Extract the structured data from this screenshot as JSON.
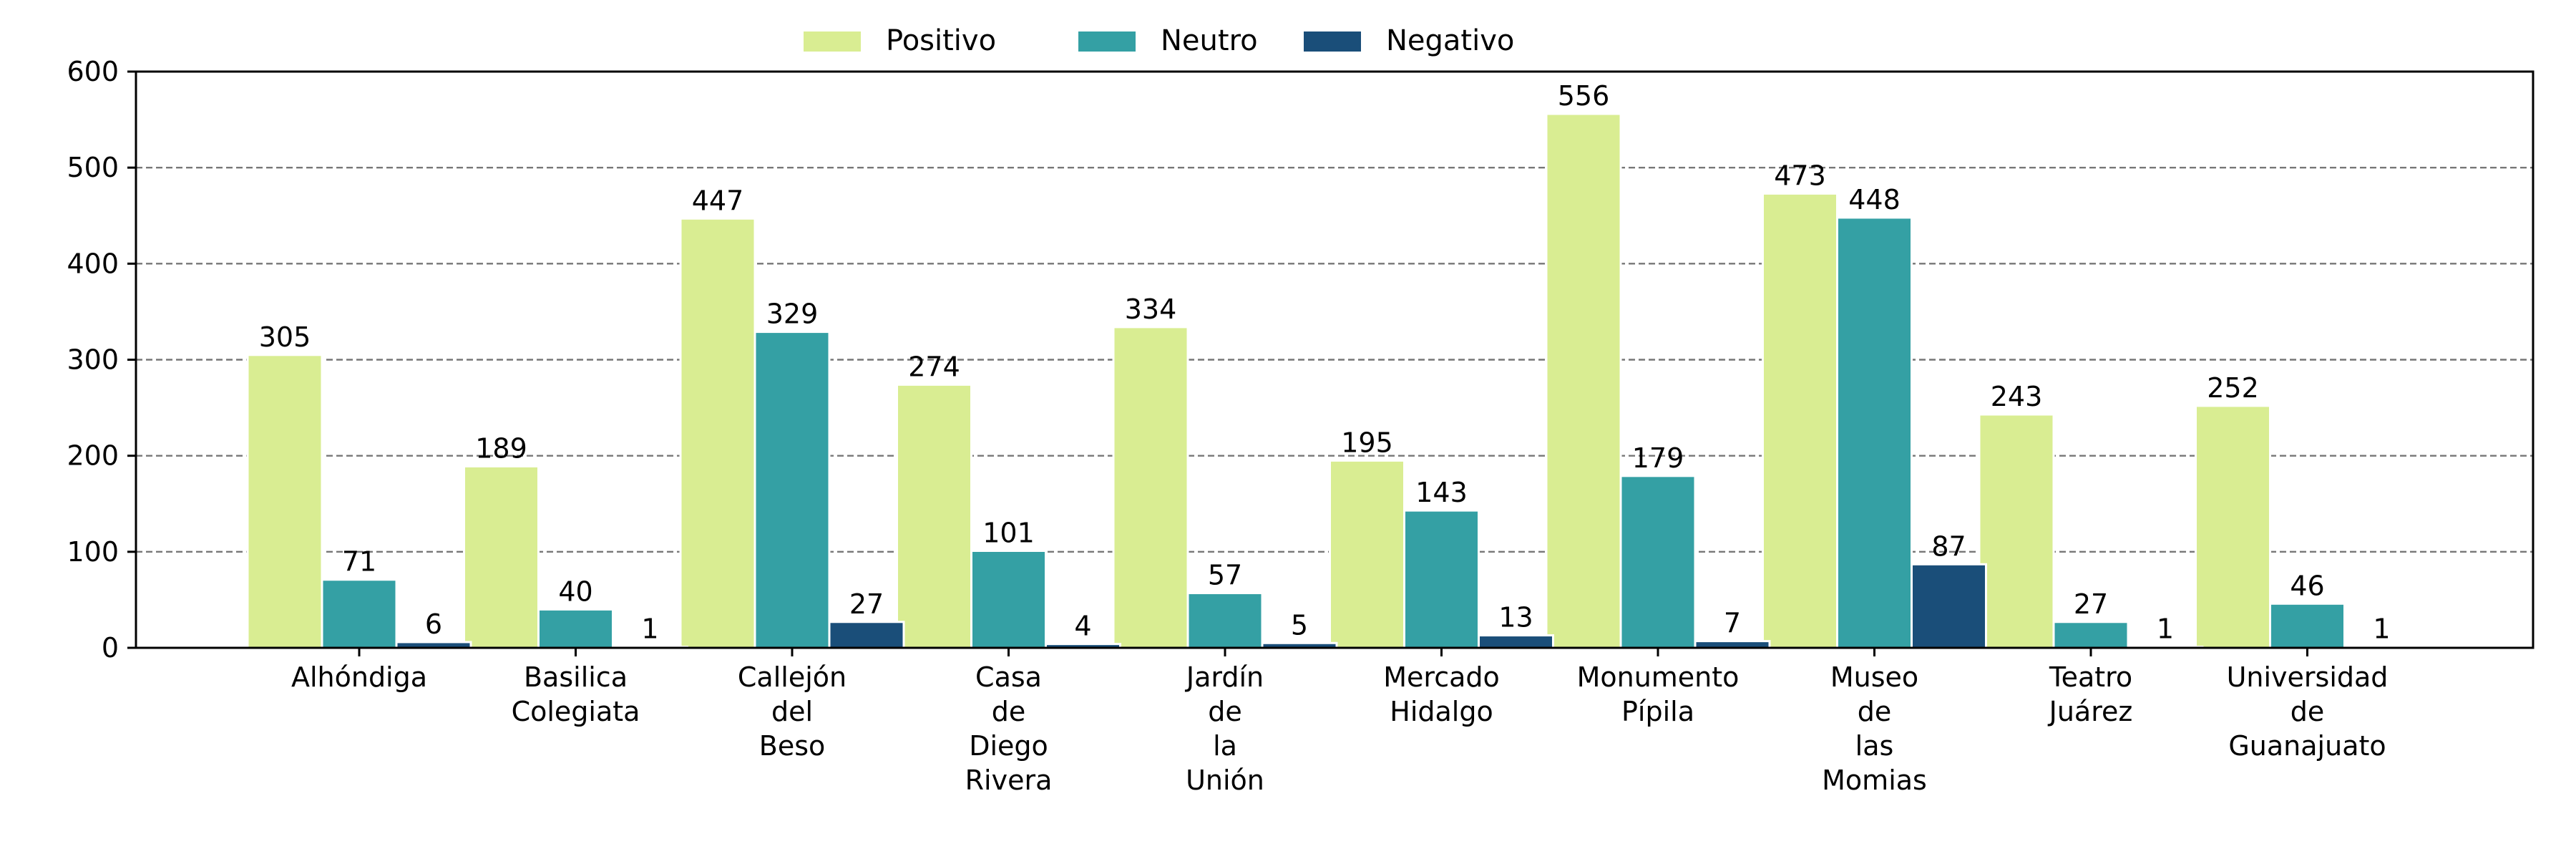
{
  "chart_data": {
    "type": "bar",
    "title": "",
    "xlabel": "",
    "ylabel": "",
    "ylim": [
      0,
      600
    ],
    "yticks": [
      0,
      100,
      200,
      300,
      400,
      500,
      600
    ],
    "grid": "y-dashed",
    "legend_position": "top-center",
    "categories": [
      [
        "Alhóndiga"
      ],
      [
        "Basilica",
        "Colegiata"
      ],
      [
        "Callejón",
        "del",
        "Beso"
      ],
      [
        "Casa",
        "de",
        "Diego",
        "Rivera"
      ],
      [
        "Jardín",
        "de",
        "la",
        "Unión"
      ],
      [
        "Mercado",
        "Hidalgo"
      ],
      [
        "Monumento",
        "Pípila"
      ],
      [
        "Museo",
        "de",
        "las",
        "Momias"
      ],
      [
        "Teatro",
        "Juárez"
      ],
      [
        "Universidad",
        "de",
        "Guanajuato"
      ]
    ],
    "series": [
      {
        "name": "Positivo",
        "color": "#d9ed92",
        "values": [
          305,
          189,
          447,
          274,
          334,
          195,
          556,
          473,
          243,
          252
        ]
      },
      {
        "name": "Neutro",
        "color": "#34a0a4",
        "values": [
          71,
          40,
          329,
          101,
          57,
          143,
          179,
          448,
          27,
          46
        ]
      },
      {
        "name": "Negativo",
        "color": "#1a4e79",
        "values": [
          6,
          1,
          27,
          4,
          5,
          13,
          7,
          87,
          1,
          1
        ]
      }
    ]
  }
}
